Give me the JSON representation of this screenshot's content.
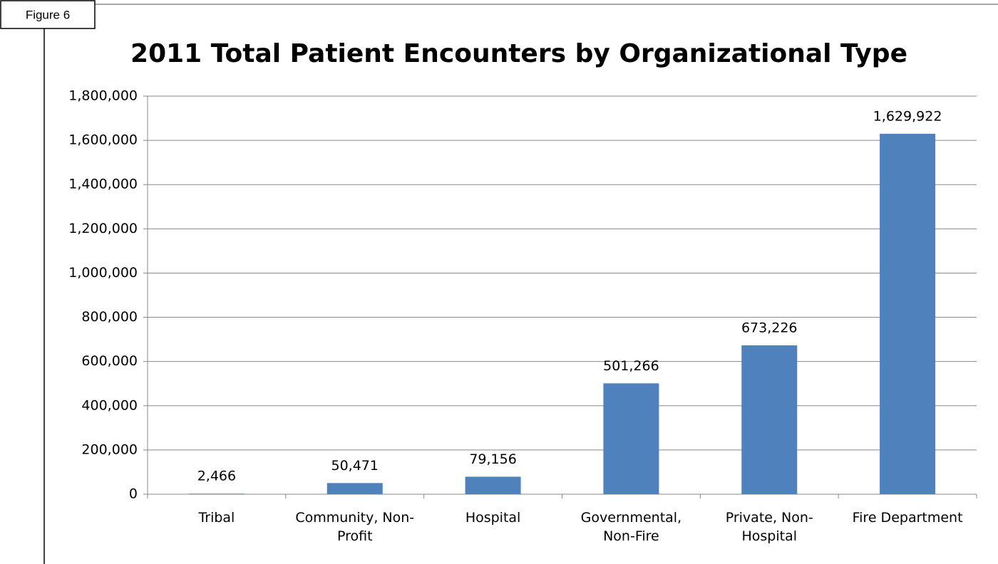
{
  "figure_label": "Figure 6",
  "chart_data": {
    "type": "bar",
    "title": "2011 Total Patient Encounters by Organizational Type",
    "categories": [
      "Tribal",
      "Community, Non-Profit",
      "Hospital",
      "Governmental, Non-Fire",
      "Private, Non-Hospital",
      "Fire Department"
    ],
    "values": [
      2466,
      50471,
      79156,
      501266,
      673226,
      1629922
    ],
    "value_labels": [
      "2,466",
      "50,471",
      "79,156",
      "501,266",
      "673,226",
      "1,629,922"
    ],
    "color": "#4f81bd",
    "ylim": [
      0,
      1800000
    ],
    "yticks": [
      0,
      {
        "value": 200000,
        "label": "200,000"
      },
      {
        "value": 400000,
        "label": "400,000"
      },
      {
        "value": 600000,
        "label": "600,000"
      },
      {
        "value": 800000,
        "label": "800,000"
      },
      {
        "value": 1000000,
        "label": "1,000,000"
      },
      {
        "value": 1200000,
        "label": "1,200,000"
      },
      {
        "value": 1400000,
        "label": "1,400,000"
      },
      {
        "value": 1600000,
        "label": "1,600,000"
      },
      {
        "value": 1800000,
        "label": "1,800,000"
      }
    ],
    "grid": true
  }
}
